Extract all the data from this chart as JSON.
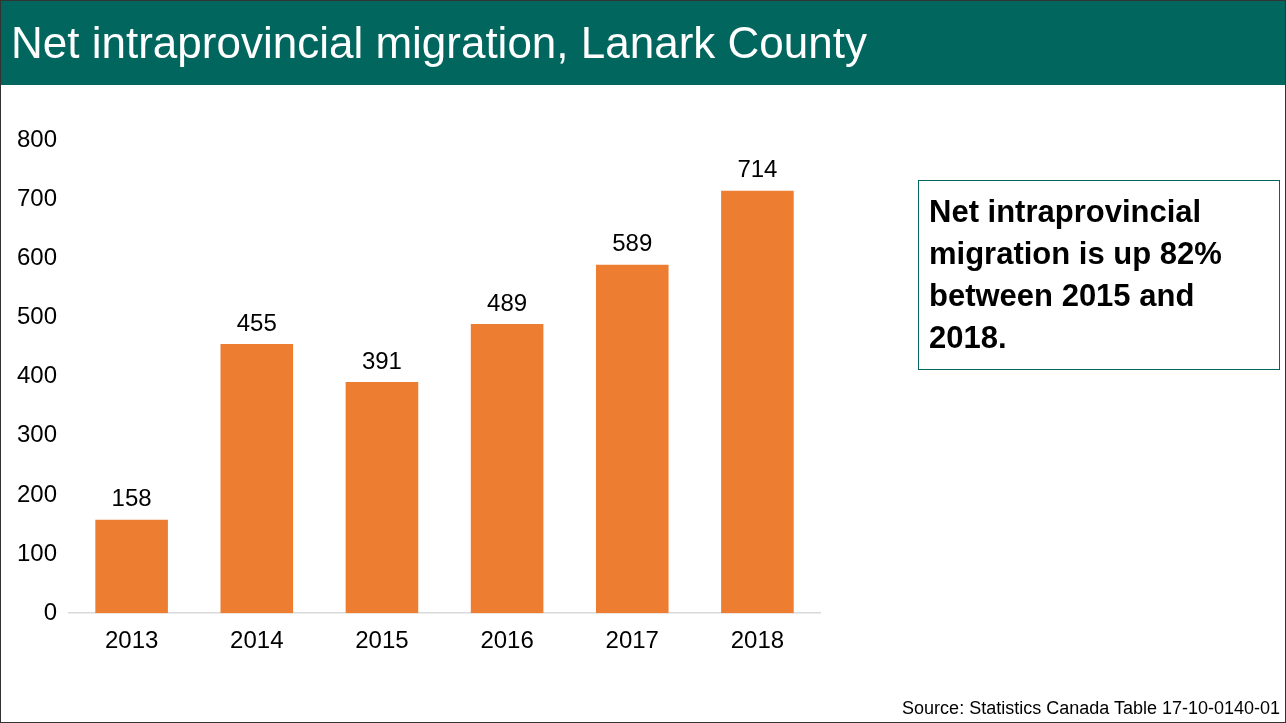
{
  "chart_data": {
    "type": "bar",
    "title": "Net intraprovincial migration, Lanark County",
    "categories": [
      "2013",
      "2014",
      "2015",
      "2016",
      "2017",
      "2018"
    ],
    "values": [
      158,
      455,
      391,
      489,
      589,
      714
    ],
    "color": "#ed7d31",
    "ylim": [
      0,
      800
    ],
    "yticks": [
      0,
      100,
      200,
      300,
      400,
      500,
      600,
      700,
      800
    ],
    "grid": false,
    "legend": false,
    "data_labels": true,
    "annotations": [
      "Net intraprovincial migration is up 82% between 2015 and 2018.",
      "Source: Statistics Canada Table 17-10-0140-01"
    ]
  }
}
